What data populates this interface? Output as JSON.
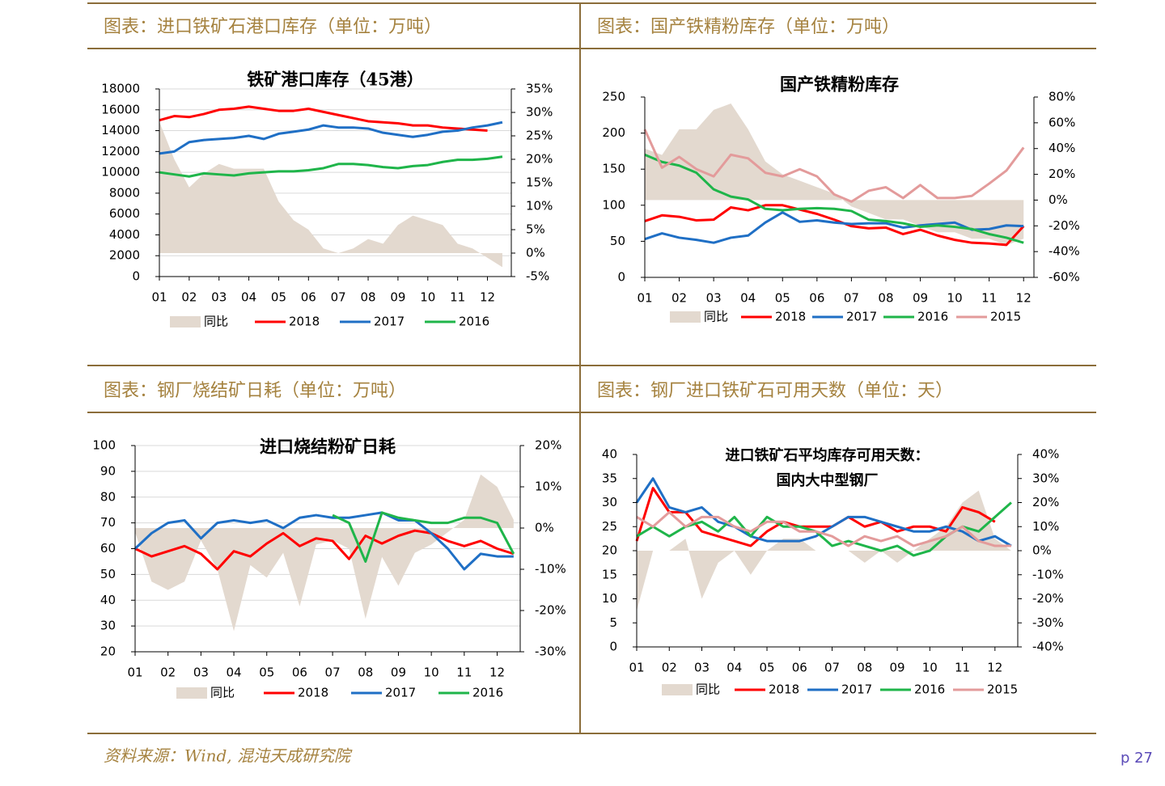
{
  "panels": [
    {
      "header": "图表：进口铁矿石港口库存（单位：万吨）"
    },
    {
      "header": "图表：国产铁精粉库存（单位：万吨）"
    },
    {
      "header": "图表：钢厂烧结矿日耗（单位：万吨）"
    },
    {
      "header": "图表：钢厂进口铁矿石可用天数（单位：天）"
    }
  ],
  "footer": {
    "source": "资料来源：Wind, 混沌天成研究院",
    "page": "p 27"
  },
  "chart_data": [
    {
      "type": "line",
      "title": "铁矿港口库存（45港）",
      "grid": true,
      "x": [
        1,
        1.5,
        2,
        2.5,
        3,
        3.5,
        4,
        4.5,
        5,
        5.5,
        6,
        6.5,
        7,
        7.5,
        8,
        8.5,
        9,
        9.5,
        10,
        10.5,
        11,
        11.5,
        12,
        12.5
      ],
      "xlim": [
        1,
        12.8
      ],
      "xticks": [
        {
          "value": 1,
          "label": "01"
        },
        {
          "value": 2,
          "label": "02"
        },
        {
          "value": 3,
          "label": "03"
        },
        {
          "value": 4,
          "label": "04"
        },
        {
          "value": 5,
          "label": "05"
        },
        {
          "value": 6,
          "label": "06"
        },
        {
          "value": 7,
          "label": "07"
        },
        {
          "value": 8,
          "label": "08"
        },
        {
          "value": 9,
          "label": "09"
        },
        {
          "value": 10,
          "label": "10"
        },
        {
          "value": 11,
          "label": "11"
        },
        {
          "value": 12,
          "label": "12"
        }
      ],
      "ylim": [
        0,
        18000
      ],
      "yticks": [
        0,
        2000,
        4000,
        6000,
        8000,
        10000,
        12000,
        14000,
        16000,
        18000
      ],
      "y2lim": [
        -5,
        35
      ],
      "y2ticks": [
        {
          "value": -5,
          "label": "-5%"
        },
        {
          "value": 0,
          "label": "0%"
        },
        {
          "value": 5,
          "label": "5%"
        },
        {
          "value": 10,
          "label": "10%"
        },
        {
          "value": 15,
          "label": "15%"
        },
        {
          "value": 20,
          "label": "20%"
        },
        {
          "value": 25,
          "label": "25%"
        },
        {
          "value": 30,
          "label": "30%"
        },
        {
          "value": 35,
          "label": "35%"
        }
      ],
      "series": [
        {
          "name": "同比",
          "mark": "area",
          "axis": "y2",
          "color": "#e3d9cf",
          "values": [
            28,
            20,
            14,
            17,
            19,
            18,
            18,
            18,
            11,
            7,
            5,
            1,
            0,
            1,
            3,
            2,
            6,
            8,
            7,
            6,
            2,
            1,
            -1,
            -3
          ]
        },
        {
          "name": "2018",
          "mark": "line",
          "color": "#ff0000",
          "values": [
            15000,
            15400,
            15300,
            15600,
            16000,
            16100,
            16300,
            16100,
            15900,
            15900,
            16100,
            15800,
            15500,
            15200,
            14900,
            14800,
            14700,
            14500,
            14500,
            14300,
            14200,
            14100,
            14000,
            null
          ]
        },
        {
          "name": "2017",
          "mark": "line",
          "color": "#1f6fc5",
          "values": [
            11800,
            12000,
            12900,
            13100,
            13200,
            13300,
            13500,
            13200,
            13700,
            13900,
            14100,
            14500,
            14300,
            14300,
            14200,
            13800,
            13600,
            13400,
            13600,
            13900,
            14000,
            14300,
            14500,
            14800
          ]
        },
        {
          "name": "2016",
          "mark": "line",
          "color": "#1fb54a",
          "values": [
            10000,
            9800,
            9600,
            9900,
            9800,
            9700,
            9900,
            10000,
            10100,
            10100,
            10200,
            10400,
            10800,
            10800,
            10700,
            10500,
            10400,
            10600,
            10700,
            11000,
            11200,
            11200,
            11300,
            11500
          ]
        }
      ]
    },
    {
      "type": "line",
      "title": "国产铁精粉库存",
      "grid": false,
      "x": [
        1,
        1.5,
        2,
        2.5,
        3,
        3.5,
        4,
        4.5,
        5,
        5.5,
        6,
        6.5,
        7,
        7.5,
        8,
        8.5,
        9,
        9.5,
        10,
        10.5,
        11,
        11.5,
        12
      ],
      "xlim": [
        1,
        12.3
      ],
      "xticks": [
        {
          "value": 1,
          "label": "01"
        },
        {
          "value": 2,
          "label": "02"
        },
        {
          "value": 3,
          "label": "03"
        },
        {
          "value": 4,
          "label": "04"
        },
        {
          "value": 5,
          "label": "05"
        },
        {
          "value": 6,
          "label": "06"
        },
        {
          "value": 7,
          "label": "07"
        },
        {
          "value": 8,
          "label": "08"
        },
        {
          "value": 9,
          "label": "09"
        },
        {
          "value": 10,
          "label": "10"
        },
        {
          "value": 11,
          "label": "11"
        },
        {
          "value": 12,
          "label": "12"
        }
      ],
      "ylim": [
        0,
        250
      ],
      "yticks": [
        0,
        50,
        100,
        150,
        200,
        250
      ],
      "y2lim": [
        -60,
        80
      ],
      "y2ticks": [
        {
          "value": -60,
          "label": "-60%"
        },
        {
          "value": -40,
          "label": "-40%"
        },
        {
          "value": -20,
          "label": "-20%"
        },
        {
          "value": 0,
          "label": "0%"
        },
        {
          "value": 20,
          "label": "20%"
        },
        {
          "value": 40,
          "label": "40%"
        },
        {
          "value": 60,
          "label": "60%"
        },
        {
          "value": 80,
          "label": "80%"
        }
      ],
      "series": [
        {
          "name": "同比",
          "mark": "area",
          "axis": "y2",
          "color": "#e3d9cf",
          "values": [
            40,
            35,
            55,
            55,
            70,
            75,
            55,
            30,
            20,
            15,
            10,
            5,
            -5,
            -10,
            -15,
            -15,
            -20,
            -25,
            -25,
            -30,
            -30,
            -35,
            -30
          ]
        },
        {
          "name": "2018",
          "mark": "line",
          "color": "#ff0000",
          "values": [
            78,
            86,
            84,
            79,
            80,
            97,
            93,
            100,
            100,
            94,
            88,
            80,
            71,
            68,
            69,
            60,
            66,
            58,
            52,
            48,
            47,
            45,
            71
          ]
        },
        {
          "name": "2017",
          "mark": "line",
          "color": "#1f6fc5",
          "values": [
            53,
            61,
            55,
            52,
            48,
            55,
            58,
            76,
            90,
            77,
            79,
            76,
            74,
            75,
            75,
            69,
            72,
            74,
            76,
            66,
            67,
            72,
            71
          ]
        },
        {
          "name": "2016",
          "mark": "line",
          "color": "#1fb54a",
          "values": [
            170,
            160,
            155,
            145,
            122,
            112,
            108,
            95,
            93,
            95,
            96,
            95,
            92,
            80,
            78,
            75,
            70,
            72,
            70,
            67,
            60,
            55,
            48
          ]
        },
        {
          "name": "2015",
          "mark": "line",
          "color": "#e39b9b",
          "values": [
            205,
            152,
            167,
            150,
            140,
            170,
            165,
            145,
            140,
            150,
            140,
            115,
            105,
            120,
            125,
            110,
            128,
            110,
            110,
            113,
            130,
            148,
            180
          ]
        }
      ]
    },
    {
      "type": "line",
      "title": "进口烧结粉矿日耗",
      "grid": true,
      "x": [
        1,
        1.5,
        2,
        2.5,
        3,
        3.5,
        4,
        4.5,
        5,
        5.5,
        6,
        6.5,
        7,
        7.5,
        8,
        8.5,
        9,
        9.5,
        10,
        10.5,
        11,
        11.5,
        12,
        12.5
      ],
      "xlim": [
        1,
        12.7
      ],
      "xticks": [
        {
          "value": 1,
          "label": "01"
        },
        {
          "value": 2,
          "label": "02"
        },
        {
          "value": 3,
          "label": "03"
        },
        {
          "value": 4,
          "label": "04"
        },
        {
          "value": 5,
          "label": "05"
        },
        {
          "value": 6,
          "label": "06"
        },
        {
          "value": 7,
          "label": "07"
        },
        {
          "value": 8,
          "label": "08"
        },
        {
          "value": 9,
          "label": "09"
        },
        {
          "value": 10,
          "label": "10"
        },
        {
          "value": 11,
          "label": "11"
        },
        {
          "value": 12,
          "label": "12"
        }
      ],
      "ylim": [
        20,
        100
      ],
      "yticks": [
        20,
        30,
        40,
        50,
        60,
        70,
        80,
        90,
        100
      ],
      "y2lim": [
        -30,
        20
      ],
      "y2ticks": [
        {
          "value": -30,
          "label": "-30%"
        },
        {
          "value": -20,
          "label": "-20%"
        },
        {
          "value": -10,
          "label": "-10%"
        },
        {
          "value": 0,
          "label": "0%"
        },
        {
          "value": 10,
          "label": "10%"
        },
        {
          "value": 20,
          "label": "20%"
        }
      ],
      "series": [
        {
          "name": "同比",
          "mark": "area",
          "axis": "y2",
          "color": "#e3d9cf",
          "values": [
            -1,
            -13,
            -15,
            -13,
            -3,
            -10,
            -25,
            -9,
            -12,
            -6,
            -19,
            -4,
            -3,
            -5,
            -22,
            -7,
            -14,
            -6,
            -4,
            -1,
            2,
            13,
            10,
            2
          ]
        },
        {
          "name": "2018",
          "mark": "line",
          "color": "#ff0000",
          "values": [
            60,
            57,
            59,
            61,
            58,
            52,
            59,
            57,
            62,
            66,
            61,
            64,
            63,
            56,
            65,
            62,
            65,
            67,
            66,
            63,
            61,
            63,
            60,
            58
          ]
        },
        {
          "name": "2017",
          "mark": "line",
          "color": "#1f6fc5",
          "values": [
            60,
            66,
            70,
            71,
            64,
            70,
            71,
            70,
            71,
            68,
            72,
            73,
            72,
            72,
            73,
            74,
            71,
            71,
            66,
            60,
            52,
            58,
            57,
            57
          ]
        },
        {
          "name": "2016",
          "mark": "line",
          "color": "#1fb54a",
          "values": [
            null,
            null,
            null,
            null,
            null,
            null,
            null,
            null,
            null,
            null,
            null,
            null,
            73,
            70,
            55,
            74,
            72,
            71,
            70,
            70,
            72,
            72,
            70,
            58
          ]
        }
      ]
    },
    {
      "type": "line",
      "title": "进口铁矿石平均库存可用天数：",
      "subtitle": "国内大中型钢厂",
      "grid": false,
      "x": [
        1,
        1.5,
        2,
        2.5,
        3,
        3.5,
        4,
        4.5,
        5,
        5.5,
        6,
        6.5,
        7,
        7.5,
        8,
        8.5,
        9,
        9.5,
        10,
        10.5,
        11,
        11.5,
        12,
        12.5
      ],
      "xlim": [
        1,
        12.7
      ],
      "xticks": [
        {
          "value": 1,
          "label": "01"
        },
        {
          "value": 2,
          "label": "02"
        },
        {
          "value": 3,
          "label": "03"
        },
        {
          "value": 4,
          "label": "04"
        },
        {
          "value": 5,
          "label": "05"
        },
        {
          "value": 6,
          "label": "06"
        },
        {
          "value": 7,
          "label": "07"
        },
        {
          "value": 8,
          "label": "08"
        },
        {
          "value": 9,
          "label": "09"
        },
        {
          "value": 10,
          "label": "10"
        },
        {
          "value": 11,
          "label": "11"
        },
        {
          "value": 12,
          "label": "12"
        }
      ],
      "ylim": [
        0,
        40
      ],
      "yticks": [
        0,
        5,
        10,
        15,
        20,
        25,
        30,
        35,
        40
      ],
      "y2lim": [
        -40,
        40
      ],
      "y2ticks": [
        {
          "value": -40,
          "label": "-40%"
        },
        {
          "value": -30,
          "label": "-30%"
        },
        {
          "value": -20,
          "label": "-20%"
        },
        {
          "value": -10,
          "label": "-10%"
        },
        {
          "value": 0,
          "label": "0%"
        },
        {
          "value": 10,
          "label": "10%"
        },
        {
          "value": 20,
          "label": "20%"
        },
        {
          "value": 30,
          "label": "30%"
        },
        {
          "value": 40,
          "label": "40%"
        }
      ],
      "series": [
        {
          "name": "同比",
          "mark": "area",
          "axis": "y2",
          "color": "#e3d9cf",
          "values": [
            -25,
            0,
            0,
            5,
            -20,
            -5,
            0,
            -10,
            0,
            5,
            5,
            0,
            0,
            0,
            -5,
            0,
            -5,
            0,
            5,
            10,
            20,
            25,
            5,
            0
          ]
        },
        {
          "name": "2018",
          "mark": "line",
          "color": "#ff0000",
          "values": [
            22,
            33,
            28,
            28,
            24,
            23,
            22,
            21,
            24,
            26,
            25,
            25,
            25,
            27,
            25,
            26,
            24,
            25,
            25,
            24,
            29,
            28,
            26,
            null
          ]
        },
        {
          "name": "2017",
          "mark": "line",
          "color": "#1f6fc5",
          "values": [
            30,
            35,
            29,
            28,
            29,
            26,
            25,
            23,
            22,
            22,
            22,
            23,
            25,
            27,
            27,
            26,
            25,
            24,
            24,
            25,
            24,
            22,
            23,
            21
          ]
        },
        {
          "name": "2016",
          "mark": "line",
          "color": "#1fb54a",
          "values": [
            23,
            25,
            23,
            25,
            26,
            24,
            27,
            23,
            27,
            25,
            25,
            24,
            21,
            22,
            21,
            20,
            21,
            19,
            20,
            23,
            25,
            24,
            27,
            30
          ]
        },
        {
          "name": "2015",
          "mark": "line",
          "color": "#e39b9b",
          "values": [
            27,
            25,
            28,
            25,
            27,
            27,
            25,
            24,
            26,
            26,
            24,
            24,
            23,
            21,
            23,
            22,
            23,
            21,
            22,
            23,
            25,
            22,
            21,
            21
          ]
        }
      ]
    }
  ]
}
